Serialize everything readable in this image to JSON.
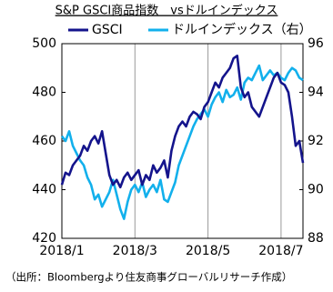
{
  "chart_data": {
    "type": "line",
    "title": "S&P GSCI商品指数　vsドルインデックス",
    "source": "（出所：Bloombergより住友商事グローバルリサーチ作成）",
    "categories": [
      "2018/1",
      null,
      null,
      null,
      null,
      null,
      null,
      null,
      null,
      null,
      null,
      null,
      null,
      null,
      null,
      null,
      null,
      null,
      null,
      null,
      "2018/3",
      null,
      null,
      null,
      null,
      null,
      null,
      null,
      null,
      null,
      null,
      null,
      null,
      null,
      null,
      null,
      null,
      null,
      null,
      null,
      "2018/5",
      null,
      null,
      null,
      null,
      null,
      null,
      null,
      null,
      null,
      null,
      null,
      null,
      null,
      null,
      null,
      null,
      null,
      null,
      null,
      "2018/7",
      null,
      null,
      null,
      null,
      null,
      null
    ],
    "series": [
      {
        "name": "GSCI",
        "color": "#14148c",
        "axis": "y",
        "values": [
          442,
          447,
          446,
          450,
          452,
          454,
          458,
          456,
          460,
          462,
          459,
          464,
          455,
          446,
          442,
          444,
          441,
          445,
          447,
          444,
          446,
          448,
          442,
          446,
          444,
          450,
          447,
          449,
          452,
          445,
          456,
          462,
          466,
          468,
          466,
          470,
          472,
          471,
          469,
          474,
          476,
          480,
          484,
          482,
          486,
          488,
          490,
          494,
          495,
          482,
          478,
          480,
          474,
          472,
          470,
          474,
          478,
          482,
          486,
          488,
          484,
          483,
          480,
          470,
          458,
          460,
          451
        ]
      },
      {
        "name": "ドルインデックス（右）",
        "color": "#12b0ec",
        "axis": "y2",
        "values": [
          92.2,
          92.0,
          92.4,
          91.8,
          91.5,
          91.2,
          91.0,
          90.5,
          90.2,
          89.6,
          89.8,
          89.3,
          89.6,
          89.9,
          90.4,
          89.8,
          89.2,
          88.8,
          89.5,
          90.0,
          90.2,
          89.9,
          90.3,
          89.7,
          90.0,
          90.2,
          89.9,
          90.4,
          89.6,
          89.5,
          89.9,
          90.3,
          91.0,
          91.4,
          91.8,
          92.2,
          92.6,
          92.9,
          93.1,
          93.3,
          93.0,
          93.5,
          93.8,
          94.0,
          93.6,
          94.1,
          93.8,
          93.9,
          94.2,
          93.7,
          94.4,
          94.6,
          94.5,
          94.8,
          95.1,
          94.5,
          94.7,
          94.9,
          94.7,
          94.8,
          94.6,
          94.5,
          94.8,
          95.0,
          94.9,
          94.6,
          94.5
        ]
      }
    ],
    "ylim": [
      420,
      500
    ],
    "yticks": [
      420,
      440,
      460,
      480,
      500
    ],
    "y2lim": [
      88,
      96
    ],
    "y2ticks": [
      88,
      90,
      92,
      94,
      96
    ],
    "xgrid": true
  }
}
